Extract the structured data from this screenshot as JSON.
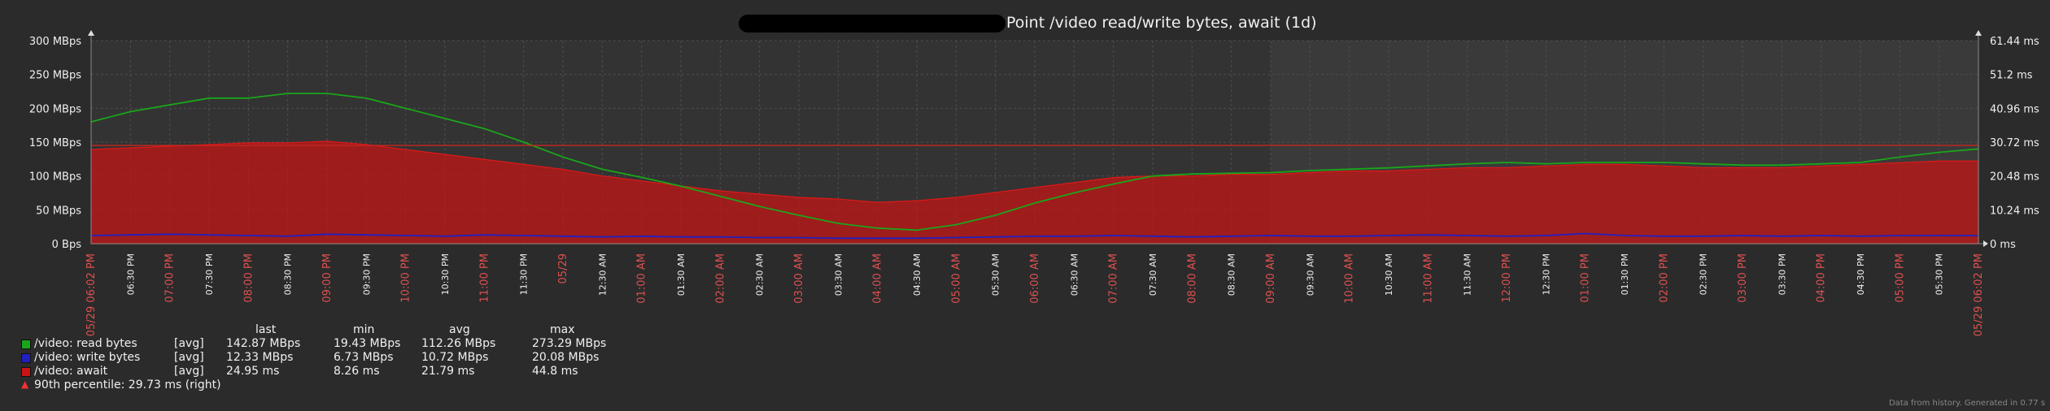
{
  "title": "Point /video read/write bytes, await (1d)",
  "footer": "Data from history. Generated in 0.77 s",
  "colors": {
    "background": "#2b2b2b",
    "plot_bg": "#333333",
    "grid": "#4d4d4d",
    "read": "#1aa61a",
    "write": "#2020c0",
    "await": "#c81414",
    "threshold": "#c8261e",
    "text": "#f0f0f0",
    "hour_label": "#e05050"
  },
  "legend": {
    "headers": [
      "last",
      "min",
      "avg",
      "max"
    ],
    "rows": [
      {
        "name": "/video: read bytes",
        "fn": "[avg]",
        "last": "142.87 MBps",
        "min": "19.43 MBps",
        "avg": "112.26 MBps",
        "max": "273.29 MBps",
        "color": "#1aa61a"
      },
      {
        "name": "/video: write bytes",
        "fn": "[avg]",
        "last": "12.33 MBps",
        "min": "6.73 MBps",
        "avg": "10.72 MBps",
        "max": "20.08 MBps",
        "color": "#2020c0"
      },
      {
        "name": "/video: await",
        "fn": "[avg]",
        "last": "24.95 ms",
        "min": "8.26 ms",
        "avg": "21.79 ms",
        "max": "44.8 ms",
        "color": "#c81414"
      }
    ],
    "percentile": "90th percentile: 29.73 ms (right)"
  },
  "chart_data": {
    "type": "line",
    "title": "Point /video read/write bytes, await (1d)",
    "x_labels": [
      "05/29 06:02 PM",
      "06:30 PM",
      "07:00 PM",
      "07:30 PM",
      "08:00 PM",
      "08:30 PM",
      "09:00 PM",
      "09:30 PM",
      "10:00 PM",
      "10:30 PM",
      "11:00 PM",
      "11:30 PM",
      "05/29",
      "12:30 AM",
      "01:00 AM",
      "01:30 AM",
      "02:00 AM",
      "02:30 AM",
      "03:00 AM",
      "03:30 AM",
      "04:00 AM",
      "04:30 AM",
      "05:00 AM",
      "05:30 AM",
      "06:00 AM",
      "06:30 AM",
      "07:00 AM",
      "07:30 AM",
      "08:00 AM",
      "08:30 AM",
      "09:00 AM",
      "09:30 AM",
      "10:00 AM",
      "10:30 AM",
      "11:00 AM",
      "11:30 AM",
      "12:00 PM",
      "12:30 PM",
      "01:00 PM",
      "01:30 PM",
      "02:00 PM",
      "02:30 PM",
      "03:00 PM",
      "03:30 PM",
      "04:00 PM",
      "04:30 PM",
      "05:00 PM",
      "05:30 PM",
      "05/29 06:02 PM"
    ],
    "x_label_red": [
      true,
      false,
      true,
      false,
      true,
      false,
      true,
      false,
      true,
      false,
      true,
      false,
      true,
      false,
      true,
      false,
      true,
      false,
      true,
      false,
      true,
      false,
      true,
      false,
      true,
      false,
      true,
      false,
      true,
      false,
      true,
      false,
      true,
      false,
      true,
      false,
      true,
      false,
      true,
      false,
      true,
      false,
      true,
      false,
      true,
      false,
      true,
      false,
      true
    ],
    "y_left": {
      "ticks": [
        "0 Bps",
        "50 MBps",
        "100 MBps",
        "150 MBps",
        "200 MBps",
        "250 MBps",
        "300 MBps"
      ],
      "range": [
        0,
        300
      ],
      "unit": "MBps"
    },
    "y_right": {
      "ticks": [
        "0 ms",
        "10.24 ms",
        "20.48 ms",
        "30.72 ms",
        "40.96 ms",
        "51.2 ms",
        "61.44 ms"
      ],
      "range": [
        0,
        61.44
      ],
      "unit": "ms"
    },
    "threshold_ms": 29.73,
    "series": [
      {
        "name": "/video: read bytes",
        "axis": "left",
        "type": "line",
        "values": [
          180,
          195,
          205,
          215,
          215,
          222,
          222,
          215,
          200,
          185,
          170,
          150,
          128,
          110,
          98,
          85,
          70,
          55,
          42,
          30,
          23,
          20,
          28,
          42,
          60,
          75,
          88,
          100,
          103,
          104,
          105,
          108,
          110,
          112,
          115,
          118,
          120,
          118,
          120,
          120,
          120,
          118,
          116,
          116,
          118,
          120,
          128,
          135,
          140
        ]
      },
      {
        "name": "/video: write bytes",
        "axis": "left",
        "type": "line",
        "values": [
          12,
          13,
          14,
          13,
          12,
          11,
          14,
          13,
          12,
          11,
          13,
          12,
          11,
          10,
          11,
          10,
          10,
          9,
          9,
          8,
          8,
          8,
          9,
          10,
          11,
          11,
          12,
          11,
          10,
          11,
          12,
          11,
          11,
          12,
          13,
          12,
          11,
          12,
          15,
          12,
          11,
          11,
          12,
          11,
          12,
          11,
          12,
          12,
          12
        ]
      },
      {
        "name": "/video: await",
        "axis": "right",
        "type": "area",
        "values": [
          28.5,
          29.0,
          29.5,
          30.0,
          30.5,
          30.5,
          31.0,
          30.0,
          28.5,
          27.0,
          25.5,
          24.0,
          22.5,
          20.5,
          19.0,
          17.5,
          16.0,
          15.0,
          14.0,
          13.5,
          12.5,
          13.0,
          14.0,
          15.5,
          17.0,
          18.5,
          20.0,
          20.5,
          20.5,
          21.0,
          21.0,
          21.5,
          22.0,
          22.0,
          22.5,
          23.0,
          23.0,
          23.5,
          24.0,
          24.0,
          23.5,
          23.0,
          23.0,
          23.0,
          23.5,
          24.0,
          24.5,
          25.0,
          25.0
        ]
      }
    ],
    "grid": true,
    "legend_position": "bottom-left"
  }
}
